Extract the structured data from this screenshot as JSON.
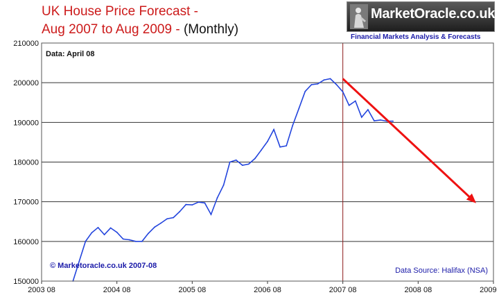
{
  "title": {
    "line1": "UK House Price Forecast -",
    "line2_red": "Aug 2007 to Aug 2009 -",
    "line2_black": "(Monthly)"
  },
  "logo": {
    "name": "MarketOracle.co.uk",
    "tagline": "Financial Markets Analysis & Forecasts"
  },
  "chart_data": {
    "type": "line",
    "title": "UK House Price Forecast - Aug 2007 to Aug 2009 - (Monthly)",
    "ylim": [
      150000,
      210000
    ],
    "xlim": [
      0,
      72
    ],
    "y_ticks": [
      "150000",
      "160000",
      "170000",
      "180000",
      "190000",
      "200000",
      "210000"
    ],
    "x_ticks": [
      "2003 08",
      "2004 08",
      "2005 08",
      "2006 08",
      "2007 08",
      "2008 08",
      "2009 08"
    ],
    "grid": true,
    "series": [
      {
        "color": "#2244dd",
        "x": [
          "2004-01",
          "2004-02",
          "2004-03",
          "2004-04",
          "2004-05",
          "2004-06",
          "2004-07",
          "2004-08",
          "2004-09",
          "2004-10",
          "2004-11",
          "2004-12",
          "2005-01",
          "2005-02",
          "2005-03",
          "2005-04",
          "2005-05",
          "2005-06",
          "2005-07",
          "2005-08",
          "2005-09",
          "2005-10",
          "2005-11",
          "2005-12",
          "2006-01",
          "2006-02",
          "2006-03",
          "2006-04",
          "2006-05",
          "2006-06",
          "2006-07",
          "2006-08",
          "2006-09",
          "2006-10",
          "2006-11",
          "2006-12",
          "2007-01",
          "2007-02",
          "2007-03",
          "2007-04",
          "2007-05",
          "2007-06",
          "2007-07",
          "2007-08",
          "2007-09",
          "2007-10",
          "2007-11",
          "2007-12",
          "2008-01",
          "2008-02",
          "2008-03",
          "2008-04"
        ],
        "y": [
          150000,
          155000,
          160000,
          162200,
          163500,
          161700,
          163400,
          162300,
          160600,
          160400,
          160000,
          160000,
          162000,
          163600,
          164600,
          165700,
          166000,
          167500,
          169300,
          169200,
          169900,
          169700,
          166800,
          171000,
          174200,
          180000,
          180500,
          179200,
          179500,
          180900,
          183000,
          185200,
          188200,
          183800,
          184100,
          189200,
          193500,
          197800,
          199500,
          199700,
          200700,
          201000,
          199500,
          197700,
          194300,
          195400,
          191300,
          193200,
          190400,
          190600,
          190300,
          190300
        ]
      }
    ],
    "forecast_arrow": {
      "from": [
        "2007-08",
        201000
      ],
      "to": [
        "2009-05",
        170000
      ],
      "color": "#ee1111"
    },
    "forecast_start_line": "2007-08",
    "annotations": {
      "data_date": "Data: April 08",
      "copyright": "© Marketoracle.co.uk 2007-08",
      "source": "Data Source: Halifax (NSA)"
    }
  }
}
